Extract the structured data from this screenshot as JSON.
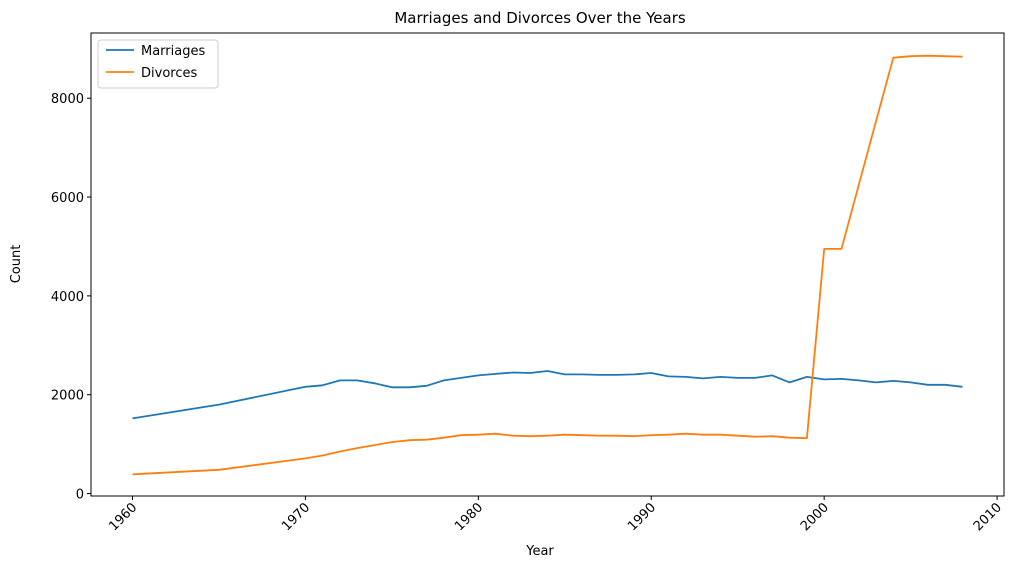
{
  "chart_data": {
    "type": "line",
    "title": "Marriages and Divorces Over the Years",
    "xlabel": "Year",
    "ylabel": "Count",
    "xlim": [
      1957.6,
      2010.4
    ],
    "ylim": [
      -50,
      9320
    ],
    "xticks": [
      1960,
      1970,
      1980,
      1990,
      2000,
      2010
    ],
    "yticks": [
      0,
      2000,
      4000,
      6000,
      8000
    ],
    "grid": false,
    "legend_position": "top-left",
    "x": [
      1960,
      1965,
      1970,
      1971,
      1972,
      1973,
      1974,
      1975,
      1976,
      1977,
      1978,
      1979,
      1980,
      1981,
      1982,
      1983,
      1984,
      1985,
      1986,
      1987,
      1988,
      1989,
      1990,
      1991,
      1992,
      1993,
      1994,
      1995,
      1996,
      1997,
      1998,
      1999,
      2000,
      2001,
      2002,
      2003,
      2004,
      2005,
      2006,
      2007,
      2008
    ],
    "series": [
      {
        "name": "Marriages",
        "color": "#1f77b4",
        "values": [
          1520,
          1800,
          2160,
          2190,
          2290,
          2290,
          2230,
          2150,
          2150,
          2180,
          2290,
          2340,
          2390,
          2420,
          2450,
          2440,
          2480,
          2410,
          2410,
          2400,
          2400,
          2410,
          2440,
          2370,
          2360,
          2330,
          2360,
          2340,
          2340,
          2390,
          2250,
          2360,
          2310,
          2320,
          2290,
          2250,
          2280,
          2250,
          2200,
          2200,
          2160
        ]
      },
      {
        "name": "Divorces",
        "color": "#ff7f0e",
        "values": [
          390,
          480,
          710,
          770,
          850,
          920,
          980,
          1040,
          1080,
          1090,
          1130,
          1180,
          1190,
          1210,
          1170,
          1160,
          1170,
          1190,
          1180,
          1170,
          1170,
          1160,
          1180,
          1190,
          1210,
          1190,
          1190,
          1170,
          1150,
          1160,
          1130,
          1120,
          4950,
          4950,
          6240,
          7530,
          8820,
          8850,
          8860,
          8850,
          8840
        ]
      }
    ]
  }
}
